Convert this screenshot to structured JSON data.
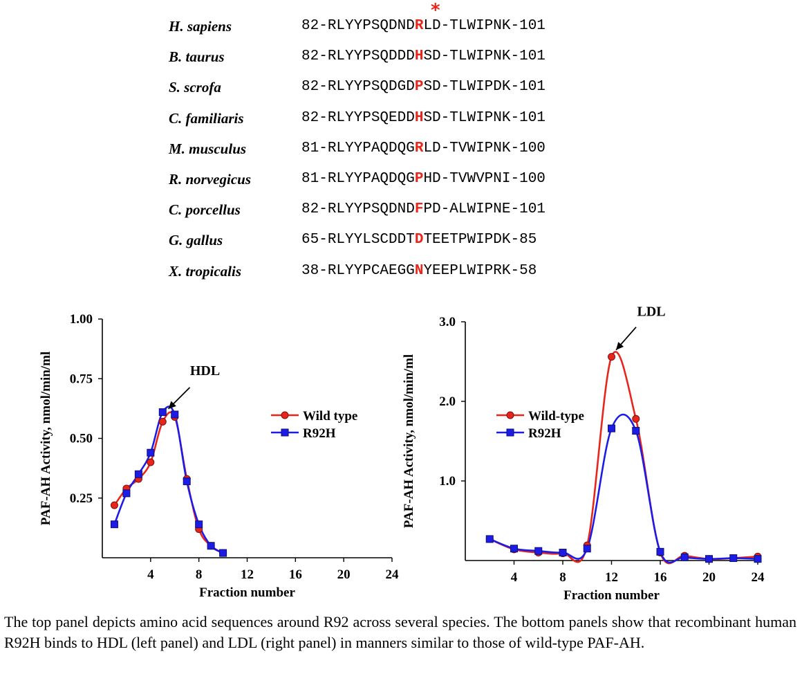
{
  "sequence_panel": {
    "asterisk": "*",
    "rows": [
      {
        "species": "H. sapiens",
        "start": "82",
        "pre": "RLYYPSQDND",
        "hl": "R",
        "post": "LD-TLWIPNK",
        "end": "101"
      },
      {
        "species": "B. taurus",
        "start": "82",
        "pre": "RLYYPSQDDD",
        "hl": "H",
        "post": "SD-TLWIPNK",
        "end": "101"
      },
      {
        "species": "S. scrofa",
        "start": "82",
        "pre": "RLYYPSQDGD",
        "hl": "P",
        "post": "SD-TLWIPDK",
        "end": "101"
      },
      {
        "species": "C. familiaris",
        "start": "82",
        "pre": "RLYYPSQEDD",
        "hl": "H",
        "post": "SD-TLWIPNK",
        "end": "101"
      },
      {
        "species": "M. musculus",
        "start": "81",
        "pre": "RLYYPAQDQG",
        "hl": "R",
        "post": "LD-TVWIPNK",
        "end": "100"
      },
      {
        "species": "R. norvegicus",
        "start": "81",
        "pre": "RLYYPAQDQG",
        "hl": "P",
        "post": "HD-TVWVPNI",
        "end": "100"
      },
      {
        "species": "C. porcellus",
        "start": "82",
        "pre": "RLYYPSQDND",
        "hl": "F",
        "post": "PD-ALWIPNE",
        "end": "101"
      },
      {
        "species": "G. gallus",
        "start": "65",
        "pre": "RLYYLSCDDT",
        "hl": "D",
        "post": "TEETPWIPDK",
        "end": "85"
      },
      {
        "species": "X. tropicalis",
        "start": "38",
        "pre": "RLYYPCAEGG",
        "hl": "N",
        "post": "YEEPLWIPRK",
        "end": "58"
      }
    ]
  },
  "colors": {
    "wild": "#e8251b",
    "mutant": "#1c1ce6",
    "highlight": "#e8251b"
  },
  "chart_data": [
    {
      "type": "line",
      "panel": "left",
      "xlabel": "Fraction number",
      "ylabel": "PAF-AH Activity, nmol/min/ml",
      "xlim": [
        0,
        24
      ],
      "ylim": [
        0,
        1.0
      ],
      "xticks": [
        4,
        8,
        12,
        16,
        20,
        24
      ],
      "xtick_labels": [
        "4",
        "8",
        "12",
        "16",
        "20",
        "24"
      ],
      "yticks": [
        0.25,
        0.5,
        0.75,
        1.0
      ],
      "ytick_labels": [
        "0.25",
        "0.50",
        "0.75",
        "1.00"
      ],
      "annotation": {
        "text": "HDL",
        "x": 5.3,
        "y": 0.615
      },
      "legend_position": "right",
      "series": [
        {
          "name": "Wild type",
          "marker": "circle",
          "x": [
            1,
            2,
            3,
            4,
            5,
            6,
            7,
            8,
            9,
            10
          ],
          "values": [
            0.22,
            0.29,
            0.33,
            0.4,
            0.57,
            0.59,
            0.33,
            0.12,
            0.05,
            0.02
          ]
        },
        {
          "name": "R92H",
          "marker": "square",
          "x": [
            1,
            2,
            3,
            4,
            5,
            6,
            7,
            8,
            9,
            10
          ],
          "values": [
            0.14,
            0.27,
            0.35,
            0.44,
            0.61,
            0.6,
            0.32,
            0.14,
            0.05,
            0.02
          ]
        }
      ]
    },
    {
      "type": "line",
      "panel": "right",
      "xlabel": "Fraction number",
      "ylabel": "PAF-AH Activity, nmol/min/ml",
      "xlim": [
        0,
        24
      ],
      "ylim": [
        0,
        3.0
      ],
      "xticks": [
        4,
        8,
        12,
        16,
        20,
        24
      ],
      "xtick_labels": [
        "4",
        "8",
        "12",
        "16",
        "20",
        "24"
      ],
      "yticks": [
        1.0,
        2.0,
        3.0
      ],
      "ytick_labels": [
        "1.0",
        "2.0",
        "3.0"
      ],
      "annotation": {
        "text": "LDL",
        "x": 12.2,
        "y": 2.62
      },
      "legend_position": "right",
      "series": [
        {
          "name": "Wild-type",
          "marker": "circle",
          "x": [
            2,
            4,
            6,
            8,
            10,
            12,
            14,
            16,
            18,
            20,
            22,
            24
          ],
          "values": [
            0.27,
            0.14,
            0.1,
            0.09,
            0.19,
            2.56,
            1.78,
            0.1,
            0.06,
            0.02,
            0.03,
            0.05
          ]
        },
        {
          "name": "R92H",
          "marker": "square",
          "x": [
            2,
            4,
            6,
            8,
            10,
            12,
            14,
            16,
            18,
            20,
            22,
            24
          ],
          "values": [
            0.27,
            0.15,
            0.12,
            0.1,
            0.15,
            1.66,
            1.63,
            0.11,
            0.04,
            0.02,
            0.03,
            0.02
          ]
        }
      ]
    }
  ],
  "caption": "The top panel depicts amino acid sequences around R92 across several species. The bottom panels show that recombinant human R92H binds to HDL (left panel) and LDL (right panel) in manners similar to those of wild-type PAF-AH."
}
